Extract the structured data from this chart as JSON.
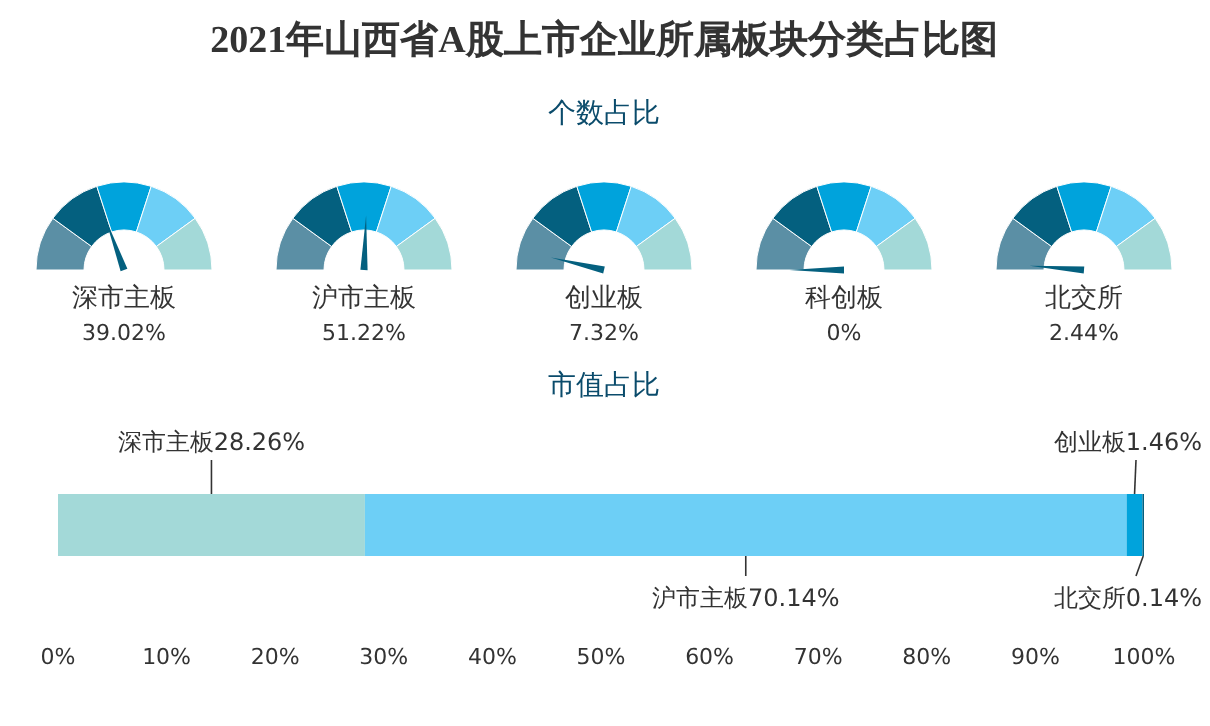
{
  "chart_data": [
    {
      "type": "other",
      "title": "2021年山西省A股上市企业所属板块分类占比图",
      "subtitle": "个数占比",
      "categories": [
        "深市主板",
        "沪市主板",
        "创业板",
        "科创板",
        "北交所"
      ],
      "values": [
        39.02,
        51.22,
        7.32,
        0,
        2.44
      ],
      "value_labels": [
        "39.02%",
        "51.22%",
        "7.32%",
        "0%",
        "2.44%"
      ],
      "colors": [
        "#5b8fa5",
        "#04607f",
        "#00a3dc",
        "#6dcff6",
        "#a3d9d8"
      ],
      "color": "#04607f"
    },
    {
      "type": "bar",
      "title": "市值占比",
      "orientation": "horizontal",
      "stacked": true,
      "categories": [
        null
      ],
      "series": [
        {
          "name": "深市主板",
          "color": "#a3d9d8",
          "values": [
            28.26
          ],
          "value_labels": [
            "28.26%"
          ]
        },
        {
          "name": "沪市主板",
          "color": "#6dcff6",
          "values": [
            70.14
          ],
          "value_labels": [
            "70.14%"
          ]
        },
        {
          "name": "创业板",
          "color": "#00a3dc",
          "values": [
            1.46
          ],
          "value_labels": [
            "1.46%"
          ]
        },
        {
          "name": "北交所",
          "color": "#04607f",
          "values": [
            0.14
          ],
          "value_labels": [
            "0.14%"
          ]
        }
      ],
      "xlim": [
        0,
        100
      ],
      "xticks": [
        {
          "value": 0,
          "label": "0%"
        },
        {
          "value": 10,
          "label": "10%"
        },
        {
          "value": 20,
          "label": "20%"
        },
        {
          "value": 30,
          "label": "30%"
        },
        {
          "value": 40,
          "label": "40%"
        },
        {
          "value": 50,
          "label": "50%"
        },
        {
          "value": 60,
          "label": "60%"
        },
        {
          "value": 70,
          "label": "70%"
        },
        {
          "value": 80,
          "label": "80%"
        },
        {
          "value": 90,
          "label": "90%"
        },
        {
          "value": 100,
          "label": "100%"
        }
      ],
      "grid": false
    }
  ]
}
